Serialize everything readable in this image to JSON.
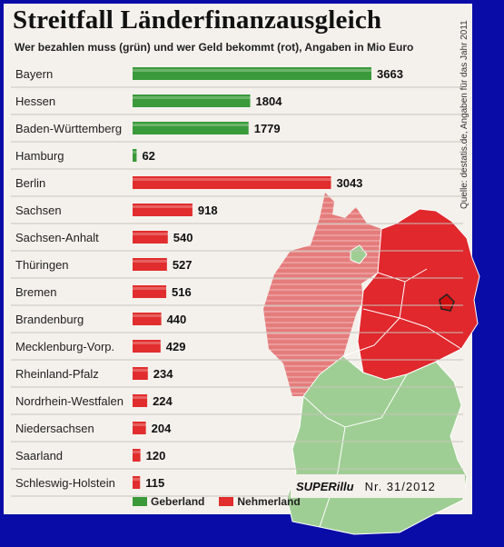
{
  "colors": {
    "geberland": "#3a9a3a",
    "nehmerland": "#e12d2d",
    "map_red": "#e0282d",
    "map_pink": "#e57c7c",
    "map_green": "#9fce94",
    "background": "#0a0ca8"
  },
  "header": {
    "title": "Streitfall Länderfinanzausgleich",
    "subtitle": "Wer bezahlen muss (grün) und wer Geld bekommt (rot), Angaben in Mio Euro",
    "source": "Quelle: destatis.de, Angaben für das Jahr 2011"
  },
  "chart_data": {
    "type": "bar",
    "orientation": "horizontal",
    "title": "Streitfall Länderfinanzausgleich",
    "subtitle": "Wer bezahlen muss (grün) und wer Geld bekommt (rot), Angaben in Mio Euro",
    "xlabel": "",
    "ylabel": "",
    "unit": "Mio Euro",
    "categories": [
      "Bayern",
      "Hessen",
      "Baden-Württemberg",
      "Hamburg",
      "Berlin",
      "Sachsen",
      "Sachsen-Anhalt",
      "Thüringen",
      "Bremen",
      "Brandenburg",
      "Mecklenburg-Vorp.",
      "Rheinland-Pfalz",
      "Nordrhein-Westfalen",
      "Niedersachsen",
      "Saarland",
      "Schleswig-Holstein"
    ],
    "values": [
      3663,
      1804,
      1779,
      62,
      3043,
      918,
      540,
      527,
      516,
      440,
      429,
      234,
      224,
      204,
      120,
      115
    ],
    "group": [
      "Geberland",
      "Geberland",
      "Geberland",
      "Geberland",
      "Nehmerland",
      "Nehmerland",
      "Nehmerland",
      "Nehmerland",
      "Nehmerland",
      "Nehmerland",
      "Nehmerland",
      "Nehmerland",
      "Nehmerland",
      "Nehmerland",
      "Nehmerland",
      "Nehmerland"
    ],
    "xlim": [
      0,
      3663
    ],
    "legend": [
      "Geberland",
      "Nehmerland"
    ],
    "legend_position": "bottom",
    "grid": false
  },
  "legend": {
    "geberland": "Geberland",
    "nehmerland": "Nehmerland"
  },
  "brand": {
    "name": "SUPERillu",
    "issue": "Nr. 31/2012"
  }
}
